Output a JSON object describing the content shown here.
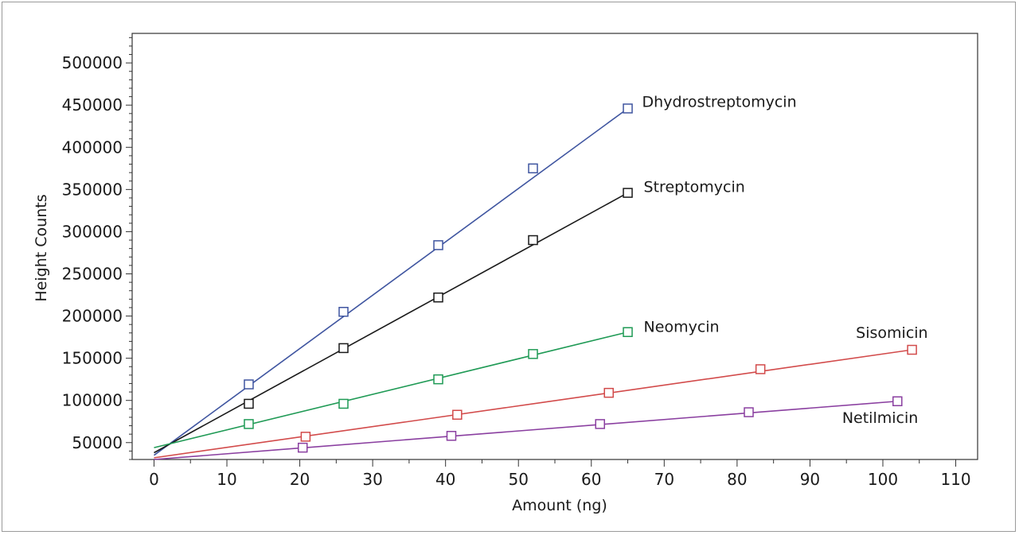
{
  "chart_data": {
    "type": "line",
    "title": "",
    "xlabel": "Amount (ng)",
    "ylabel": "Height Counts",
    "xlim": [
      -3,
      113
    ],
    "ylim": [
      30000,
      535000
    ],
    "x_ticks": [
      0,
      10,
      20,
      30,
      40,
      50,
      60,
      70,
      80,
      90,
      100,
      110
    ],
    "y_ticks": [
      50000,
      100000,
      150000,
      200000,
      250000,
      300000,
      350000,
      400000,
      450000,
      500000
    ],
    "grid": false,
    "legend": "none",
    "series": [
      {
        "name": "Dhydrostreptomycin",
        "color": "#3f55a0",
        "x": [
          13,
          26,
          39,
          52,
          65
        ],
        "y": [
          119000,
          205000,
          284000,
          375000,
          446000
        ],
        "fit": {
          "x": [
            0,
            65
          ],
          "y": [
            35000,
            446000
          ]
        }
      },
      {
        "name": "Streptomycin",
        "color": "#1a1a1a",
        "x": [
          13,
          26,
          39,
          52,
          65
        ],
        "y": [
          96000,
          162000,
          222000,
          290000,
          346000
        ],
        "fit": {
          "x": [
            0,
            65
          ],
          "y": [
            38000,
            346000
          ]
        }
      },
      {
        "name": "Neomycin",
        "color": "#1f9a55",
        "x": [
          13,
          26,
          39,
          52,
          65
        ],
        "y": [
          72000,
          96000,
          125000,
          155000,
          181000
        ],
        "fit": {
          "x": [
            0,
            65
          ],
          "y": [
            44000,
            181000
          ]
        }
      },
      {
        "name": "Sisomicin",
        "color": "#d24a4a",
        "x": [
          20.8,
          41.6,
          62.4,
          83.2,
          104
        ],
        "y": [
          57000,
          83000,
          109000,
          137000,
          160000
        ],
        "fit": {
          "x": [
            0,
            104
          ],
          "y": [
            32000,
            160000
          ]
        }
      },
      {
        "name": "Netilmicin",
        "color": "#8a3fa0",
        "x": [
          20.4,
          40.8,
          61.2,
          81.6,
          102
        ],
        "y": [
          44000,
          58000,
          72000,
          86000,
          99000
        ],
        "fit": {
          "x": [
            0,
            102
          ],
          "y": [
            30000,
            99000
          ]
        }
      }
    ]
  }
}
